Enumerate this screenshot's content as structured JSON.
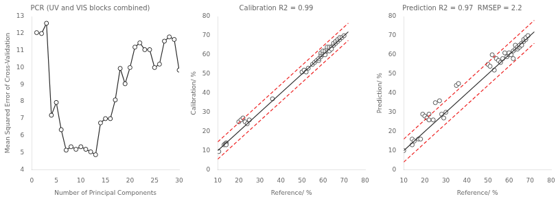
{
  "chart_data": [
    {
      "type": "line",
      "title": "PCR (UV and VIS blocks combined)",
      "xlabel": "Number of Principal Components",
      "ylabel": "Mean Squared Error of Cross-Validation",
      "x": [
        1,
        2,
        3,
        4,
        5,
        6,
        7,
        8,
        9,
        10,
        11,
        12,
        13,
        14,
        15,
        16,
        17,
        18,
        19,
        20,
        21,
        22,
        23,
        24,
        25,
        26,
        27,
        28,
        29,
        30
      ],
      "series": [
        {
          "color": "#2a2a2a",
          "marker": "open_circle",
          "line_style": "solid",
          "values": [
            12.05,
            12.0,
            12.6,
            7.2,
            7.95,
            6.35,
            5.15,
            5.35,
            5.2,
            5.35,
            5.2,
            5.05,
            4.88,
            6.75,
            7.0,
            7.0,
            8.1,
            9.95,
            9.05,
            10.0,
            11.2,
            11.45,
            11.05,
            11.05,
            10.0,
            10.2,
            11.55,
            11.8,
            11.65,
            9.85
          ]
        }
      ],
      "xlim": [
        0,
        30
      ],
      "ylim": [
        4,
        13
      ],
      "xticks": [
        0,
        5,
        10,
        15,
        20,
        25,
        30
      ],
      "yticks": [
        4,
        5,
        6,
        7,
        8,
        9,
        10,
        11,
        12,
        13
      ],
      "grid": false
    },
    {
      "type": "scatter",
      "title": "Calibration R2 = 0.99",
      "xlabel": "Reference/ %",
      "ylabel": "Calibration/ %",
      "series": [
        {
          "type": "line",
          "color": "#2a2a2a",
          "line_style": "solid",
          "marker": "none",
          "x": [
            10,
            72
          ],
          "values": [
            10,
            72
          ]
        },
        {
          "type": "line",
          "color": "#ee2222",
          "line_style": "dashed",
          "marker": "none",
          "x": [
            10,
            72
          ],
          "values": [
            14.5,
            76.5
          ]
        },
        {
          "type": "line",
          "color": "#ee2222",
          "line_style": "dashed",
          "marker": "none",
          "x": [
            10,
            72
          ],
          "values": [
            5.5,
            67.5
          ]
        },
        {
          "type": "scatter",
          "color": "#555555",
          "marker": "open_circle",
          "line_style": "none",
          "x": [
            10.5,
            13,
            13.5,
            14,
            14,
            14,
            20,
            21,
            22,
            23,
            24,
            25,
            36,
            50,
            51,
            52,
            53,
            55,
            56,
            57,
            58,
            58,
            59,
            59,
            59,
            60,
            60,
            60,
            61,
            61,
            61,
            62,
            62,
            62,
            63,
            63,
            63,
            64,
            64,
            64,
            65,
            65,
            65,
            66,
            66,
            67,
            67,
            68,
            68,
            69,
            70
          ],
          "values": [
            9.5,
            13,
            13.5,
            14,
            13.5,
            13,
            25,
            26,
            27,
            25,
            24,
            26,
            37,
            51,
            52,
            51,
            53,
            55,
            56,
            57,
            57,
            58,
            59,
            60,
            61,
            60,
            61,
            62,
            61,
            60,
            62,
            62,
            63,
            64,
            63,
            62,
            64,
            64,
            64,
            63,
            65,
            65,
            66,
            66,
            67,
            67,
            68,
            68,
            69,
            69,
            70
          ]
        }
      ],
      "xlim": [
        10,
        80
      ],
      "ylim": [
        0,
        80
      ],
      "xticks": [
        10,
        20,
        30,
        40,
        50,
        60,
        70,
        80
      ],
      "yticks": [
        0,
        10,
        20,
        30,
        40,
        50,
        60,
        70,
        80
      ],
      "grid": false
    },
    {
      "type": "scatter",
      "title": "Prediction R2 = 0.97  RMSEP = 2.2",
      "xlabel": "Reference/ %",
      "ylabel": "Prediction/ %",
      "series": [
        {
          "type": "line",
          "color": "#2a2a2a",
          "line_style": "solid",
          "marker": "none",
          "x": [
            10,
            72
          ],
          "values": [
            10,
            72
          ]
        },
        {
          "type": "line",
          "color": "#ee2222",
          "line_style": "dashed",
          "marker": "none",
          "x": [
            10,
            72
          ],
          "values": [
            16.0,
            78.0
          ]
        },
        {
          "type": "line",
          "color": "#ee2222",
          "line_style": "dashed",
          "marker": "none",
          "x": [
            10,
            72
          ],
          "values": [
            4.0,
            66.0
          ]
        },
        {
          "type": "scatter",
          "color": "#555555",
          "marker": "open_circle",
          "line_style": "none",
          "x": [
            10,
            14,
            14,
            15,
            17,
            18,
            19,
            20,
            21,
            22,
            22,
            24,
            25,
            27,
            28,
            29,
            30,
            35,
            36,
            50,
            51,
            52,
            53,
            54,
            55,
            56,
            57,
            58,
            59,
            60,
            60,
            61,
            62,
            62,
            63,
            63,
            64,
            64,
            65,
            65,
            66,
            66,
            67,
            67,
            68,
            68,
            69
          ],
          "values": [
            10,
            13,
            16,
            15,
            16,
            16,
            29,
            28,
            27,
            26,
            29,
            26,
            35,
            36,
            29,
            27,
            30,
            44,
            45,
            55,
            54,
            60,
            52,
            58,
            57,
            56,
            58,
            61,
            59,
            60,
            61,
            60,
            62,
            58,
            63,
            65,
            63,
            64,
            64,
            65,
            66,
            65,
            67,
            68,
            68,
            69,
            70
          ]
        }
      ],
      "xlim": [
        10,
        80
      ],
      "ylim": [
        0,
        80
      ],
      "xticks": [
        10,
        20,
        30,
        40,
        50,
        60,
        70,
        80
      ],
      "yticks": [
        0,
        10,
        20,
        30,
        40,
        50,
        60,
        70,
        80
      ],
      "grid": false
    }
  ]
}
